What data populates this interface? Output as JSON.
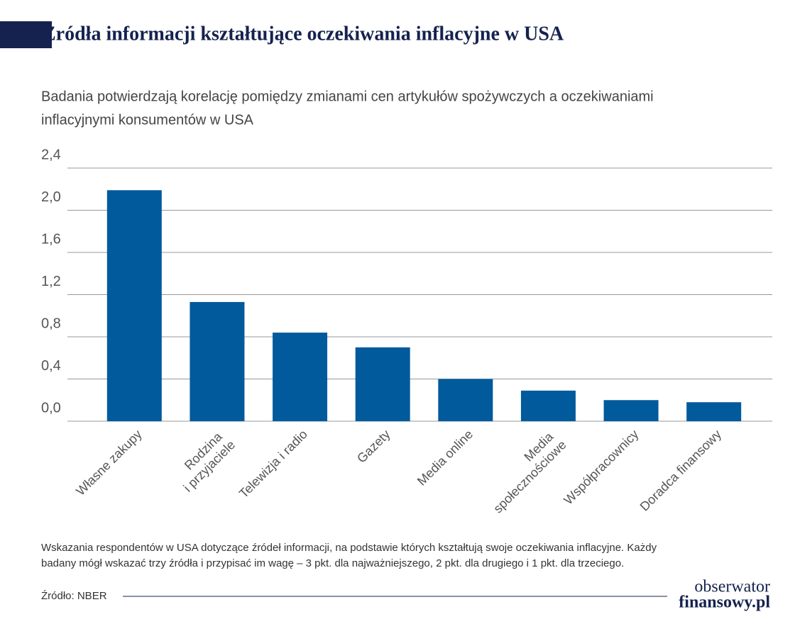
{
  "chart_data": {
    "type": "bar",
    "title": "Źródła informacji kształtujące oczekiwania inflacyjne w USA",
    "subtitle": [
      "Badania potwierdzają korelację pomiędzy zmianami cen artykułów spożywczych a oczekiwaniami",
      "inflacyjnymi konsumentów w USA"
    ],
    "categories": [
      "Własne zakupy",
      "Rodzina\ni przyjaciele",
      "Telewizja i radio",
      "Gazety",
      "Media online",
      "Media\nspołecznościowe",
      "Współpracownicy",
      "Doradca finansowy"
    ],
    "values": [
      2.19,
      1.13,
      0.84,
      0.7,
      0.4,
      0.29,
      0.2,
      0.18
    ],
    "color": "#005a9c",
    "ylim": [
      0,
      2.4
    ],
    "yticks": [
      {
        "value": 0,
        "label": "0,0"
      },
      {
        "value": 0.4,
        "label": "0,4"
      },
      {
        "value": 0.8,
        "label": "0,8"
      },
      {
        "value": 1.2,
        "label": "1,2"
      },
      {
        "value": 1.6,
        "label": "1,6"
      },
      {
        "value": 2.0,
        "label": "2,0"
      },
      {
        "value": 2.4,
        "label": "2,4"
      }
    ],
    "grid": true,
    "note": [
      "Wskazania respondentów w USA dotyczące źródeł informacji, na podstawie których kształtują swoje oczekiwania inflacyjne. Każdy",
      "badany mógł wskazać trzy źródła i przypisać im wagę – 3 pkt. dla najważniejszego, 2 pkt. dla drugiego i 1 pkt. dla trzeciego."
    ],
    "source": "Źródło: NBER",
    "brand": [
      "obserwator",
      "finansowy.pl"
    ]
  }
}
